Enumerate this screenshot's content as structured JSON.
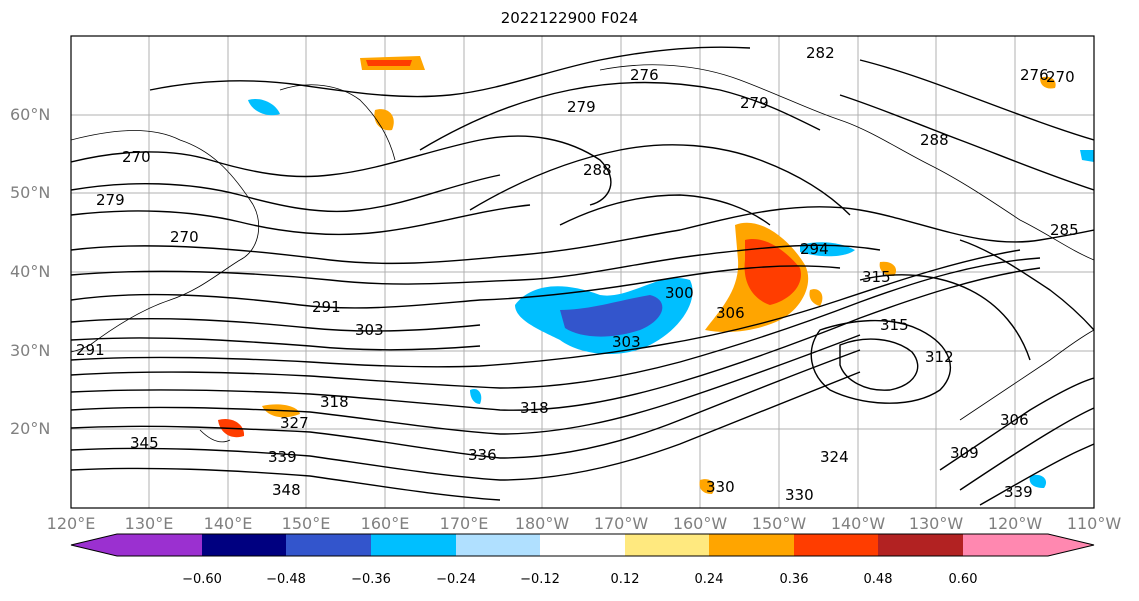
{
  "title": "2022122900 F024",
  "lat_labels": [
    "60°N",
    "50°N",
    "40°N",
    "30°N",
    "20°N"
  ],
  "lon_labels": [
    "120°E",
    "130°E",
    "140°E",
    "150°E",
    "160°E",
    "170°E",
    "180°W",
    "170°W",
    "160°W",
    "150°W",
    "140°W",
    "130°W",
    "120°W",
    "110°W"
  ],
  "contour_labels": [
    "270",
    "279",
    "270",
    "279",
    "276",
    "279",
    "288",
    "282",
    "270",
    "291",
    "303",
    "300",
    "303",
    "306",
    "294",
    "318",
    "315",
    "315",
    "312",
    "327",
    "318",
    "336",
    "330",
    "330",
    "339",
    "339",
    "345",
    "348",
    "306",
    "309",
    "324",
    "276",
    "288",
    "285",
    "291"
  ],
  "colorbar": {
    "ticks": [
      "−0.60",
      "−0.48",
      "−0.36",
      "−0.24",
      "−0.12",
      "0.12",
      "0.24",
      "0.36",
      "0.48",
      "0.60"
    ],
    "colors": [
      "#9b30d0",
      "#000080",
      "#3355cc",
      "#00bfff",
      "#b0e0ff",
      "#ffffff",
      "#ffe97f",
      "#ffa500",
      "#ff3d00",
      "#b22222",
      "#ff88b0"
    ]
  }
}
